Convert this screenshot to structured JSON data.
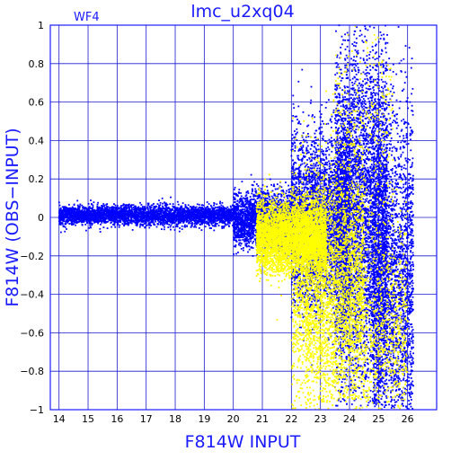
{
  "chart_data": {
    "type": "scatter",
    "title": "lmc_u2xq04",
    "panel_label": "WF4",
    "xlabel": "F814W INPUT",
    "ylabel": "F814W (OBS−INPUT)",
    "xlim": [
      13.7,
      27.0
    ],
    "ylim": [
      -1,
      1
    ],
    "grid": true,
    "x_ticks": [
      "14",
      "15",
      "16",
      "17",
      "18",
      "19",
      "20",
      "21",
      "22",
      "23",
      "24",
      "25",
      "26"
    ],
    "x_tick_values": [
      14,
      15,
      16,
      17,
      18,
      19,
      20,
      21,
      22,
      23,
      24,
      25,
      26
    ],
    "y_ticks": [
      "1",
      "0.8",
      "0.6",
      "0.4",
      "0.2",
      "0",
      "−0.2",
      "−0.4",
      "−0.6",
      "−0.8",
      "−1"
    ],
    "y_tick_values": [
      1,
      0.8,
      0.6,
      0.4,
      0.2,
      0,
      -0.2,
      -0.4,
      -0.6,
      -0.8,
      -1
    ],
    "colors": {
      "axis": "#1a1aff",
      "grid": "#1a1ad0",
      "series_blue": "#0000ff",
      "series_yellow": "#ffff00"
    },
    "series": [
      {
        "color": "#0000ff",
        "regions": [
          {
            "x_range": [
              14.0,
              20.0
            ],
            "y_center": 0.01,
            "y_spread": 0.025,
            "count": 3600
          },
          {
            "x_range": [
              20.0,
              22.0
            ],
            "y_center": -0.01,
            "y_spread": 0.07,
            "count": 2200
          },
          {
            "x_range": [
              22.0,
              24.0
            ],
            "y_center": -0.02,
            "y_spread": 0.22,
            "count": 3600
          },
          {
            "x_range": [
              23.5,
              25.3
            ],
            "y_center": 0.0,
            "y_spread": 0.45,
            "count": 4800
          },
          {
            "x_range": [
              24.8,
              26.2
            ],
            "y_center": -0.35,
            "y_spread": 0.45,
            "count": 2600
          }
        ]
      },
      {
        "color": "#ffff00",
        "regions": [
          {
            "x_range": [
              20.8,
              23.2
            ],
            "y_center": -0.1,
            "y_spread": 0.09,
            "count": 4200
          },
          {
            "x_range": [
              22.0,
              24.5
            ],
            "y_center": -0.3,
            "y_spread": 0.3,
            "count": 2400
          },
          {
            "x_range": [
              22.5,
              26.0
            ],
            "y_center": -0.6,
            "y_spread": 0.3,
            "count": 1800
          },
          {
            "x_range": [
              23.5,
              25.5
            ],
            "y_center": 0.4,
            "y_spread": 0.35,
            "count": 350
          }
        ]
      }
    ]
  }
}
